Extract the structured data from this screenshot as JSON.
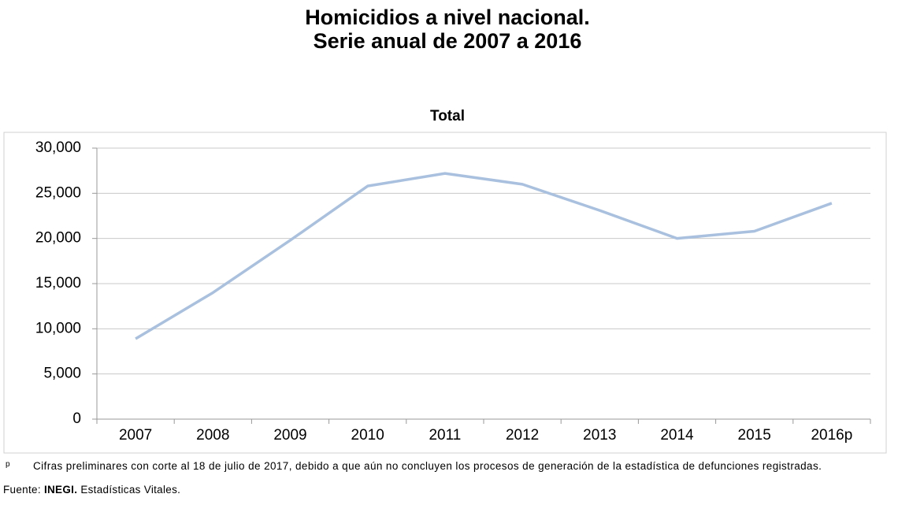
{
  "chart_data": {
    "type": "line",
    "title_lines": [
      "Homicidios a nivel nacional.",
      "Serie anual de 2007 a 2016"
    ],
    "chart_title": "Total",
    "categories": [
      "2007",
      "2008",
      "2009",
      "2010",
      "2011",
      "2012",
      "2013",
      "2014",
      "2015",
      "2016p"
    ],
    "series": [
      {
        "name": "Total",
        "color": "#a9c1de",
        "values": [
          8900,
          14000,
          19800,
          25800,
          27200,
          26000,
          23100,
          20000,
          20800,
          23900
        ]
      }
    ],
    "ylim": [
      0,
      30000
    ],
    "yticks": [
      0,
      {
        "value": 5000,
        "label": "5,000"
      },
      {
        "value": 10000,
        "label": "10,000"
      },
      {
        "value": 15000,
        "label": "15,000"
      },
      {
        "value": 20000,
        "label": "20,000"
      },
      {
        "value": 25000,
        "label": "25,000"
      },
      {
        "value": 30000,
        "label": "30,000"
      }
    ],
    "grid": true
  },
  "notes": {
    "marker": "p",
    "footnote": "Cifras preliminares con corte al 18 de julio de 2017, debido a que aún no concluyen los procesos de generación de la estadística de defunciones registradas.",
    "source_label": "Fuente:",
    "source_org": "INEGI.",
    "source_text": "Estadísticas Vitales."
  }
}
